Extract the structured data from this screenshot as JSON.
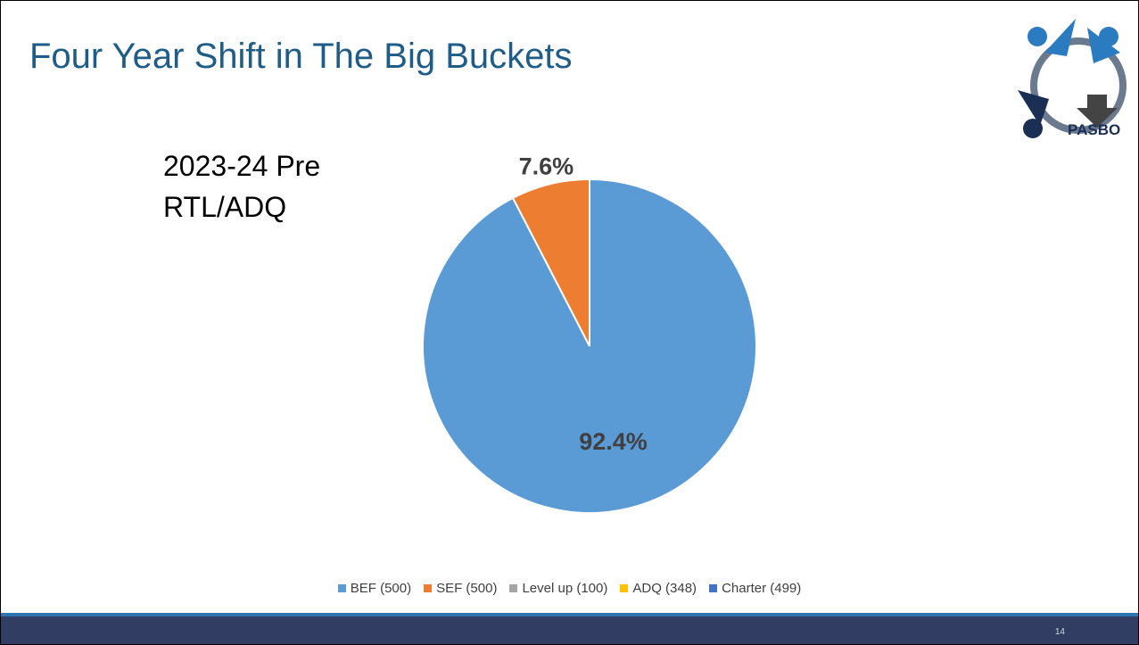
{
  "title": "Four Year Shift in The Big Buckets",
  "logo": "PASBO",
  "page_number": "14",
  "chart_data": {
    "type": "pie",
    "subtitle": "2023-24 Pre RTL/ADQ",
    "categories": [
      "BEF (500)",
      "SEF (500)",
      "Level up (100)",
      "ADQ (348)",
      "Charter (499)"
    ],
    "values": [
      92.4,
      7.6,
      0,
      0,
      0
    ],
    "value_labels": [
      "92.4%",
      "7.6%",
      null,
      null,
      null
    ],
    "colors": [
      "#5b9bd5",
      "#ed7d31",
      "#a5a5a5",
      "#ffc000",
      "#4472c4"
    ],
    "legend": "bottom"
  }
}
